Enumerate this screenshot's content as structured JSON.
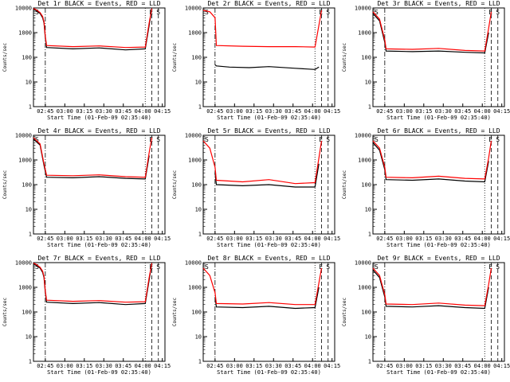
{
  "chart_data": [
    {
      "type": "line",
      "title": "Det 1r BLACK = Events, RED = LLD",
      "xlabel": "Start Time (01-Feb-09 02:35:40)",
      "ylabel": "Counts/sec",
      "yscale": "log",
      "ylim": [
        1,
        10000
      ],
      "x_ticks": [
        "02:45",
        "03:00",
        "03:15",
        "03:30",
        "03:45",
        "04:00",
        "04:15"
      ],
      "y_ticks": [
        "1",
        "10",
        "100",
        "1000",
        "10000"
      ],
      "corner_left": "S",
      "corner_right": [
        "E",
        "S"
      ],
      "series": [
        {
          "name": "BLACK = Events",
          "color": "#000000",
          "x": [
            0,
            0.02,
            0.05,
            0.07,
            0.08,
            0.09,
            0.1,
            0.3,
            0.5,
            0.7,
            0.85,
            0.88,
            0.9
          ],
          "values": [
            9000,
            8000,
            6000,
            4000,
            2500,
            600,
            250,
            220,
            240,
            200,
            220,
            2000,
            9000
          ]
        },
        {
          "name": "RED = LLD",
          "color": "#ff0000",
          "x": [
            0,
            0.02,
            0.05,
            0.07,
            0.08,
            0.09,
            0.1,
            0.3,
            0.5,
            0.7,
            0.85,
            0.88,
            0.9
          ],
          "values": [
            9500,
            8500,
            6500,
            4500,
            2800,
            700,
            300,
            270,
            290,
            250,
            260,
            2500,
            9500
          ]
        }
      ]
    },
    {
      "type": "line",
      "title": "Det 2r BLACK = Events, RED = LLD",
      "xlabel": "Start Time (01-Feb-09 02:35:40)",
      "ylabel": "Counts/sec",
      "yscale": "log",
      "ylim": [
        1,
        10000
      ],
      "x_ticks": [
        "02:45",
        "03:00",
        "03:15",
        "03:30",
        "03:45",
        "04:00",
        "04:15"
      ],
      "y_ticks": [
        "1",
        "10",
        "100",
        "1000",
        "10000"
      ],
      "corner_left": "S",
      "corner_right": [
        "E",
        "S"
      ],
      "series": [
        {
          "name": "BLACK = Events",
          "color": "#000000",
          "x": [
            0.09,
            0.1,
            0.2,
            0.35,
            0.5,
            0.7,
            0.85,
            0.88
          ],
          "values": [
            50,
            45,
            40,
            38,
            42,
            36,
            32,
            40
          ]
        },
        {
          "name": "RED = LLD",
          "color": "#ff0000",
          "x": [
            0,
            0.05,
            0.09,
            0.1,
            0.3,
            0.5,
            0.7,
            0.85,
            0.88,
            0.9
          ],
          "values": [
            8000,
            7000,
            4000,
            300,
            280,
            270,
            270,
            260,
            2000,
            8000
          ]
        }
      ]
    },
    {
      "type": "line",
      "title": "Det 3r BLACK = Events, RED = LLD",
      "xlabel": "Start Time (01-Feb-09 02:35:40)",
      "ylabel": "Counts/sec",
      "yscale": "log",
      "ylim": [
        1,
        10000
      ],
      "x_ticks": [
        "02:45",
        "03:00",
        "03:15",
        "03:30",
        "03:45",
        "04:00",
        "04:15"
      ],
      "y_ticks": [
        "1",
        "10",
        "100",
        "1000",
        "10000"
      ],
      "corner_left": "S",
      "corner_right": [
        "E",
        "S"
      ],
      "series": [
        {
          "name": "BLACK = Events",
          "color": "#000000",
          "x": [
            0,
            0.05,
            0.09,
            0.1,
            0.3,
            0.5,
            0.7,
            0.85,
            0.88
          ],
          "values": [
            6000,
            3000,
            400,
            180,
            170,
            180,
            160,
            150,
            1000
          ]
        },
        {
          "name": "RED = LLD",
          "color": "#ff0000",
          "x": [
            0,
            0.05,
            0.09,
            0.1,
            0.3,
            0.5,
            0.7,
            0.85,
            0.88,
            0.9
          ],
          "values": [
            7000,
            3500,
            500,
            220,
            210,
            230,
            190,
            180,
            1500,
            7000
          ]
        }
      ]
    },
    {
      "type": "line",
      "title": "Det 4r BLACK = Events, RED = LLD",
      "xlabel": "Start Time (01-Feb-09 02:35:40)",
      "ylabel": "Counts/sec",
      "yscale": "log",
      "ylim": [
        1,
        10000
      ],
      "x_ticks": [
        "02:45",
        "03:00",
        "03:15",
        "03:30",
        "03:45",
        "04:00",
        "04:15"
      ],
      "y_ticks": [
        "1",
        "10",
        "100",
        "1000",
        "10000"
      ],
      "corner_left": "S",
      "corner_right": [
        "E",
        "S"
      ],
      "series": [
        {
          "name": "BLACK = Events",
          "color": "#000000",
          "x": [
            0,
            0.05,
            0.08,
            0.1,
            0.3,
            0.5,
            0.7,
            0.85,
            0.88
          ],
          "values": [
            7000,
            4000,
            600,
            200,
            190,
            210,
            180,
            170,
            1500
          ]
        },
        {
          "name": "RED = LLD",
          "color": "#ff0000",
          "x": [
            0,
            0.05,
            0.08,
            0.1,
            0.3,
            0.5,
            0.7,
            0.85,
            0.88,
            0.9
          ],
          "values": [
            8000,
            4500,
            700,
            240,
            230,
            250,
            210,
            200,
            2000,
            8000
          ]
        }
      ]
    },
    {
      "type": "line",
      "title": "Det 5r BLACK = Events, RED = LLD",
      "xlabel": "Start Time (01-Feb-09 02:35:40)",
      "ylabel": "Counts/sec",
      "yscale": "log",
      "ylim": [
        1,
        10000
      ],
      "x_ticks": [
        "02:45",
        "03:00",
        "03:15",
        "03:30",
        "03:45",
        "04:00",
        "04:15"
      ],
      "y_ticks": [
        "1",
        "10",
        "100",
        "1000",
        "10000"
      ],
      "corner_left": "S",
      "corner_right": [
        "E",
        "S"
      ],
      "series": [
        {
          "name": "BLACK = Events",
          "color": "#000000",
          "x": [
            0.09,
            0.1,
            0.3,
            0.5,
            0.7,
            0.85,
            0.88
          ],
          "values": [
            300,
            100,
            90,
            100,
            80,
            80,
            700
          ]
        },
        {
          "name": "RED = LLD",
          "color": "#ff0000",
          "x": [
            0,
            0.05,
            0.09,
            0.1,
            0.3,
            0.5,
            0.7,
            0.85,
            0.88,
            0.9
          ],
          "values": [
            6000,
            3000,
            500,
            150,
            130,
            160,
            110,
            120,
            1200,
            6000
          ]
        }
      ]
    },
    {
      "type": "line",
      "title": "Det 6r BLACK = Events, RED = LLD",
      "xlabel": "Start Time (01-Feb-09 02:35:40)",
      "ylabel": "Counts/sec",
      "yscale": "log",
      "ylim": [
        1,
        10000
      ],
      "x_ticks": [
        "02:45",
        "03:00",
        "03:15",
        "03:30",
        "03:45",
        "04:00",
        "04:15"
      ],
      "y_ticks": [
        "1",
        "10",
        "100",
        "1000",
        "10000"
      ],
      "corner_left": "S",
      "corner_right": [
        "E",
        "S"
      ],
      "series": [
        {
          "name": "BLACK = Events",
          "color": "#000000",
          "x": [
            0,
            0.05,
            0.09,
            0.1,
            0.3,
            0.5,
            0.7,
            0.85,
            0.88
          ],
          "values": [
            5000,
            2500,
            400,
            160,
            150,
            170,
            140,
            130,
            900
          ]
        },
        {
          "name": "RED = LLD",
          "color": "#ff0000",
          "x": [
            0,
            0.05,
            0.09,
            0.1,
            0.3,
            0.5,
            0.7,
            0.85,
            0.88,
            0.9
          ],
          "values": [
            6000,
            3000,
            500,
            200,
            190,
            220,
            180,
            170,
            1200,
            6000
          ]
        }
      ]
    },
    {
      "type": "line",
      "title": "Det 7r BLACK = Events, RED = LLD",
      "xlabel": "Start Time (01-Feb-09 02:35:40)",
      "ylabel": "Counts/sec",
      "yscale": "log",
      "ylim": [
        1,
        10000
      ],
      "x_ticks": [
        "02:45",
        "03:00",
        "03:15",
        "03:30",
        "03:45",
        "04:00",
        "04:15"
      ],
      "y_ticks": [
        "1",
        "10",
        "100",
        "1000",
        "10000"
      ],
      "corner_left": "S",
      "corner_right": [
        "E",
        "S"
      ],
      "series": [
        {
          "name": "BLACK = Events",
          "color": "#000000",
          "x": [
            0,
            0.02,
            0.05,
            0.07,
            0.08,
            0.09,
            0.1,
            0.3,
            0.5,
            0.7,
            0.85,
            0.88,
            0.9
          ],
          "values": [
            9000,
            8000,
            6000,
            4000,
            2500,
            600,
            250,
            220,
            240,
            200,
            220,
            2000,
            9000
          ]
        },
        {
          "name": "RED = LLD",
          "color": "#ff0000",
          "x": [
            0,
            0.02,
            0.05,
            0.07,
            0.08,
            0.09,
            0.1,
            0.3,
            0.5,
            0.7,
            0.85,
            0.88,
            0.9
          ],
          "values": [
            9500,
            8500,
            6500,
            4500,
            2800,
            700,
            300,
            270,
            290,
            250,
            260,
            2500,
            9500
          ]
        }
      ]
    },
    {
      "type": "line",
      "title": "Det 8r BLACK = Events, RED = LLD",
      "xlabel": "Start Time (01-Feb-09 02:35:40)",
      "ylabel": "Counts/sec",
      "yscale": "log",
      "ylim": [
        1,
        10000
      ],
      "x_ticks": [
        "02:45",
        "03:00",
        "03:15",
        "03:30",
        "03:45",
        "04:00",
        "04:15"
      ],
      "y_ticks": [
        "1",
        "10",
        "100",
        "1000",
        "10000"
      ],
      "corner_left": "S",
      "corner_right": [
        "E",
        "S"
      ],
      "series": [
        {
          "name": "BLACK = Events",
          "color": "#000000",
          "x": [
            0.09,
            0.1,
            0.3,
            0.5,
            0.7,
            0.85,
            0.88
          ],
          "values": [
            400,
            160,
            150,
            170,
            140,
            150,
            1000
          ]
        },
        {
          "name": "RED = LLD",
          "color": "#ff0000",
          "x": [
            0,
            0.05,
            0.09,
            0.1,
            0.3,
            0.5,
            0.7,
            0.85,
            0.88,
            0.9
          ],
          "values": [
            6000,
            3000,
            600,
            220,
            210,
            240,
            200,
            200,
            1500,
            6000
          ]
        }
      ]
    },
    {
      "type": "line",
      "title": "Det 9r BLACK = Events, RED = LLD",
      "xlabel": "Start Time (01-Feb-09 02:35:40)",
      "ylabel": "Counts/sec",
      "yscale": "log",
      "ylim": [
        1,
        10000
      ],
      "x_ticks": [
        "02:45",
        "03:00",
        "03:15",
        "03:30",
        "03:45",
        "04:00",
        "04:15"
      ],
      "y_ticks": [
        "1",
        "10",
        "100",
        "1000",
        "10000"
      ],
      "corner_left": "S",
      "corner_right": [
        "E",
        "S"
      ],
      "series": [
        {
          "name": "BLACK = Events",
          "color": "#000000",
          "x": [
            0,
            0.05,
            0.09,
            0.1,
            0.3,
            0.5,
            0.7,
            0.85,
            0.88
          ],
          "values": [
            5000,
            2500,
            400,
            170,
            160,
            180,
            150,
            140,
            1000
          ]
        },
        {
          "name": "RED = LLD",
          "color": "#ff0000",
          "x": [
            0,
            0.05,
            0.09,
            0.1,
            0.3,
            0.5,
            0.7,
            0.85,
            0.88,
            0.9
          ],
          "values": [
            6000,
            3000,
            500,
            210,
            200,
            230,
            190,
            180,
            1300,
            6000
          ]
        }
      ]
    }
  ]
}
